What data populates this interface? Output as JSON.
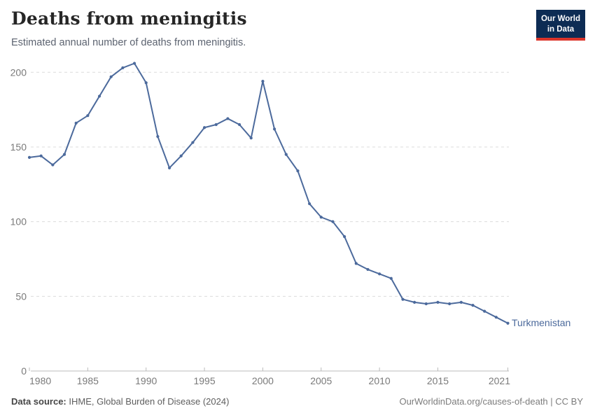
{
  "header": {
    "title": "Deaths from meningitis",
    "subtitle": "Estimated annual number of deaths from meningitis."
  },
  "logo": {
    "line1": "Our World",
    "line2": "in Data",
    "bg_color": "#0d2c54",
    "bar_color": "#dc352a"
  },
  "entity_label": "Turkmenistan",
  "footer": {
    "source_label": "Data source:",
    "source_value": " IHME, Global Burden of Disease (2024)",
    "credit": "OurWorldinData.org/causes-of-death | CC BY"
  },
  "chart_data": {
    "type": "line",
    "title": "Deaths from meningitis",
    "subtitle": "Estimated annual number of deaths from meningitis.",
    "x": [
      1980,
      1981,
      1982,
      1983,
      1984,
      1985,
      1986,
      1987,
      1988,
      1989,
      1990,
      1991,
      1992,
      1993,
      1994,
      1995,
      1996,
      1997,
      1998,
      1999,
      2000,
      2001,
      2002,
      2003,
      2004,
      2005,
      2006,
      2007,
      2008,
      2009,
      2010,
      2011,
      2012,
      2013,
      2014,
      2015,
      2016,
      2017,
      2018,
      2019,
      2020,
      2021
    ],
    "series": [
      {
        "name": "Turkmenistan",
        "color": "#4C6A9C",
        "values": [
          143,
          144,
          138,
          145,
          166,
          171,
          184,
          197,
          203,
          206,
          193,
          157,
          136,
          144,
          153,
          163,
          165,
          169,
          165,
          156,
          194,
          162,
          145,
          134,
          112,
          103,
          100,
          90,
          72,
          68,
          65,
          62,
          48,
          46,
          45,
          46,
          45,
          46,
          44,
          40,
          36,
          32
        ]
      }
    ],
    "xlabel": "",
    "ylabel": "",
    "ylim": [
      0,
      200
    ],
    "yticks": [
      0,
      50,
      100,
      150,
      200
    ],
    "xticks": [
      1980,
      1985,
      1990,
      1995,
      2000,
      2005,
      2010,
      2015,
      2021
    ],
    "grid": "horizontal-dashed",
    "legend_position": "end-of-line-label",
    "axis_text_color": "#7a7a7a",
    "grid_color": "#dcdcdc",
    "baseline_color": "#bbbbbb"
  }
}
